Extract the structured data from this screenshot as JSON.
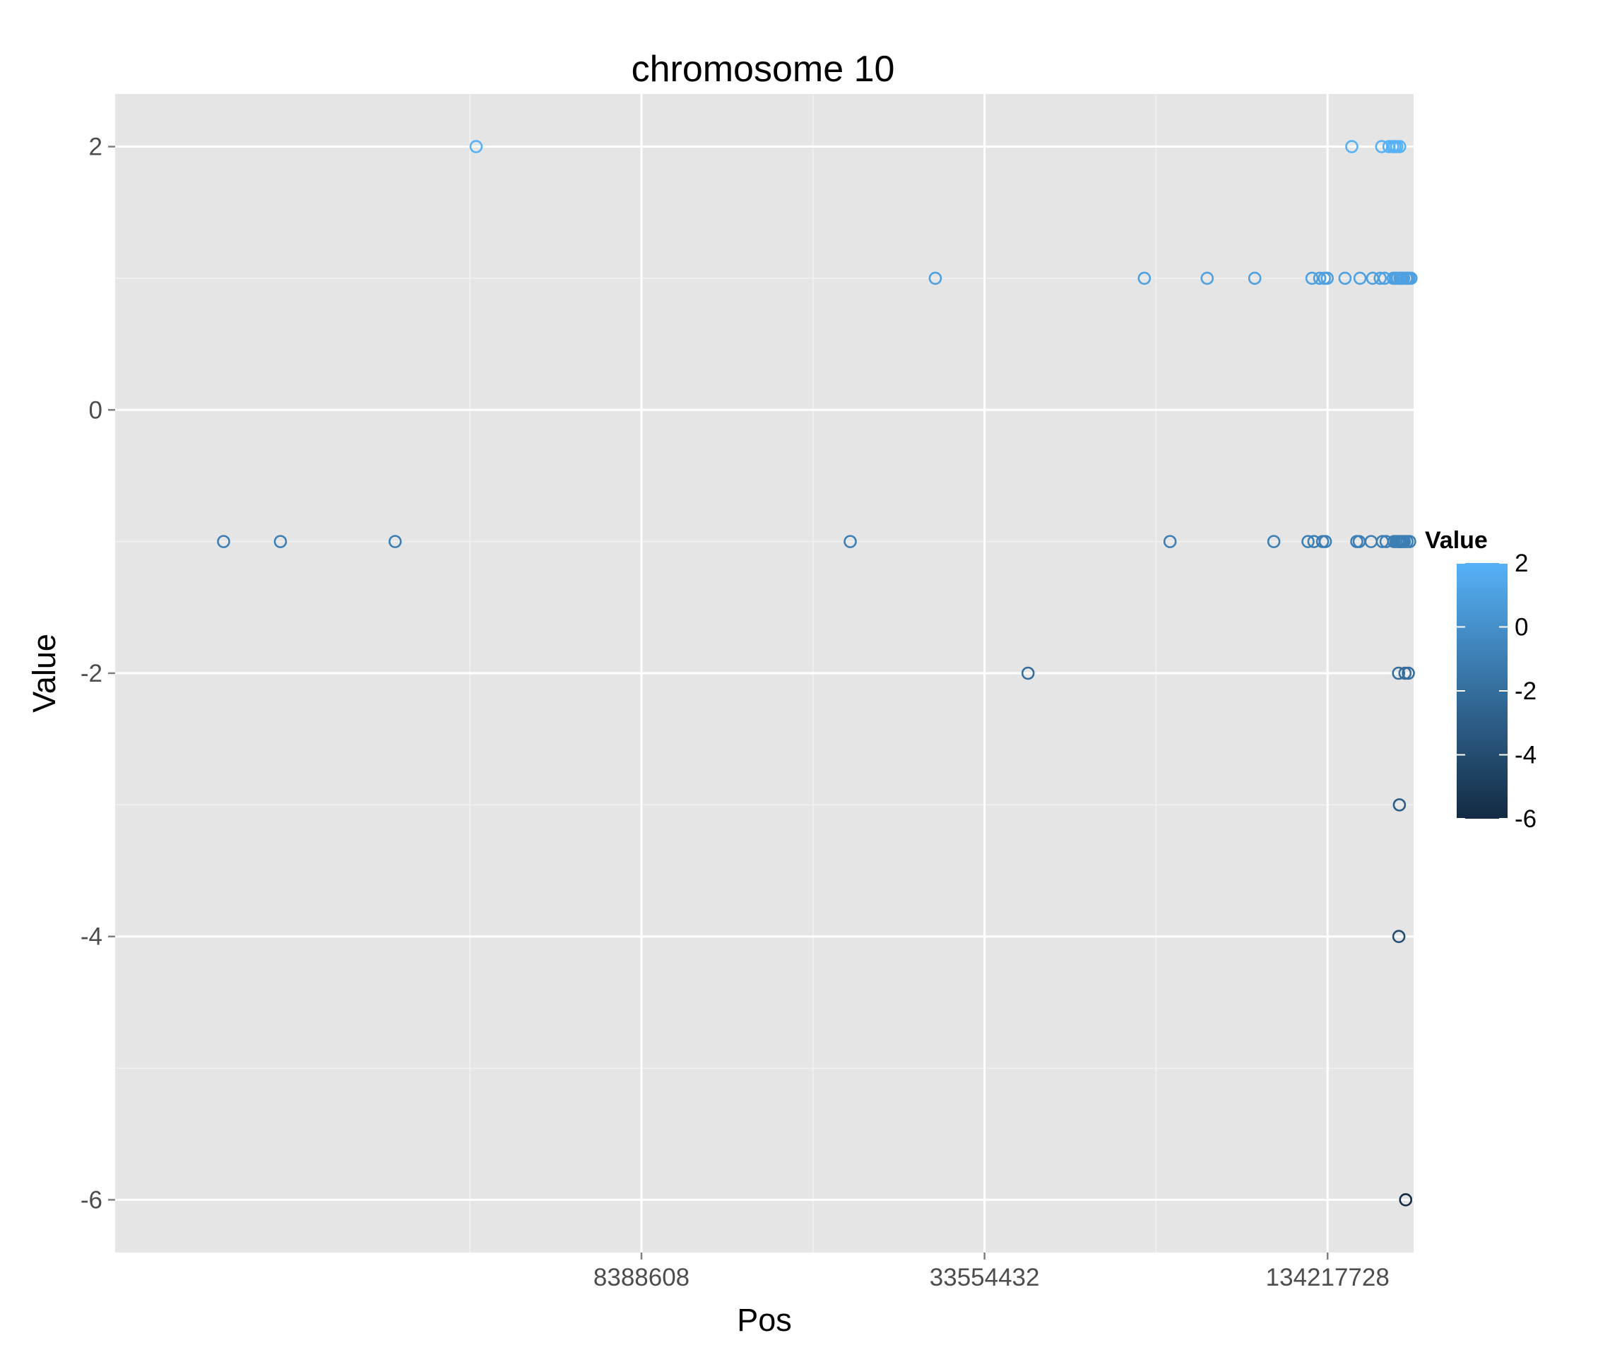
{
  "chart_data": {
    "type": "scatter",
    "title": "chromosome 10",
    "xlabel": "Pos",
    "ylabel": "Value",
    "x_scale": "log2",
    "x_tick_labels": [
      "8388608",
      "33554432",
      "134217728"
    ],
    "x_ticks": [
      8388608,
      33554432,
      134217728
    ],
    "xlim": [
      1000000,
      190000000
    ],
    "y_ticks": [
      2,
      0,
      -2,
      -4,
      -6
    ],
    "y_tick_labels": [
      "2",
      "0",
      "-2",
      "-4",
      "-6"
    ],
    "ylim": [
      -6.4,
      2.4
    ],
    "grid": true,
    "legend": {
      "title": "Value",
      "type": "colorbar",
      "position": "right",
      "labels": [
        "2",
        "0",
        "-2",
        "-4",
        "-6"
      ],
      "values": [
        2,
        0,
        -2,
        -4,
        -6
      ],
      "range": [
        -6,
        2
      ],
      "color_low": "#132b43",
      "color_high": "#56b1f7"
    },
    "points": [
      {
        "x": 1550000,
        "y": -1
      },
      {
        "x": 1950000,
        "y": -1
      },
      {
        "x": 3100000,
        "y": -1
      },
      {
        "x": 4300000,
        "y": 2
      },
      {
        "x": 19500000,
        "y": -1
      },
      {
        "x": 27500000,
        "y": 1
      },
      {
        "x": 40000000,
        "y": -2
      },
      {
        "x": 64000000,
        "y": 1
      },
      {
        "x": 71000000,
        "y": -1
      },
      {
        "x": 82500000,
        "y": 1
      },
      {
        "x": 100000000,
        "y": 1
      },
      {
        "x": 108000000,
        "y": -1
      },
      {
        "x": 124000000,
        "y": -1
      },
      {
        "x": 126000000,
        "y": 1
      },
      {
        "x": 127000000,
        "y": -1
      },
      {
        "x": 130000000,
        "y": 1
      },
      {
        "x": 131500000,
        "y": -1
      },
      {
        "x": 132500000,
        "y": 1
      },
      {
        "x": 133000000,
        "y": -1
      },
      {
        "x": 134000000,
        "y": 1
      },
      {
        "x": 144000000,
        "y": 1
      },
      {
        "x": 148000000,
        "y": 2
      },
      {
        "x": 151000000,
        "y": -1
      },
      {
        "x": 152500000,
        "y": -1
      },
      {
        "x": 153000000,
        "y": 1
      },
      {
        "x": 160000000,
        "y": -1
      },
      {
        "x": 161000000,
        "y": 1
      },
      {
        "x": 166000000,
        "y": 1
      },
      {
        "x": 167000000,
        "y": 2
      },
      {
        "x": 167500000,
        "y": -1
      },
      {
        "x": 169000000,
        "y": 1
      },
      {
        "x": 170000000,
        "y": -1
      },
      {
        "x": 172000000,
        "y": 2
      },
      {
        "x": 174500000,
        "y": 2
      },
      {
        "x": 175000000,
        "y": 1
      },
      {
        "x": 175500000,
        "y": -1
      },
      {
        "x": 176000000,
        "y": 2
      },
      {
        "x": 176500000,
        "y": 1
      },
      {
        "x": 177000000,
        "y": -1
      },
      {
        "x": 177500000,
        "y": 2
      },
      {
        "x": 178000000,
        "y": 1
      },
      {
        "x": 178500000,
        "y": -1
      },
      {
        "x": 178800000,
        "y": -2
      },
      {
        "x": 179000000,
        "y": -4
      },
      {
        "x": 179200000,
        "y": -1
      },
      {
        "x": 179400000,
        "y": -3
      },
      {
        "x": 179600000,
        "y": 2
      },
      {
        "x": 179800000,
        "y": 1
      },
      {
        "x": 180000000,
        "y": -1
      },
      {
        "x": 180500000,
        "y": 1
      },
      {
        "x": 181000000,
        "y": -1
      },
      {
        "x": 181500000,
        "y": 1
      },
      {
        "x": 182000000,
        "y": -1
      },
      {
        "x": 182500000,
        "y": 1
      },
      {
        "x": 183000000,
        "y": -1
      },
      {
        "x": 183500000,
        "y": -2
      },
      {
        "x": 184000000,
        "y": -6
      },
      {
        "x": 184500000,
        "y": 1
      },
      {
        "x": 185000000,
        "y": -1
      },
      {
        "x": 185500000,
        "y": 1
      },
      {
        "x": 186000000,
        "y": -2
      },
      {
        "x": 186500000,
        "y": 1
      },
      {
        "x": 187000000,
        "y": -1
      },
      {
        "x": 188000000,
        "y": 1
      }
    ]
  }
}
